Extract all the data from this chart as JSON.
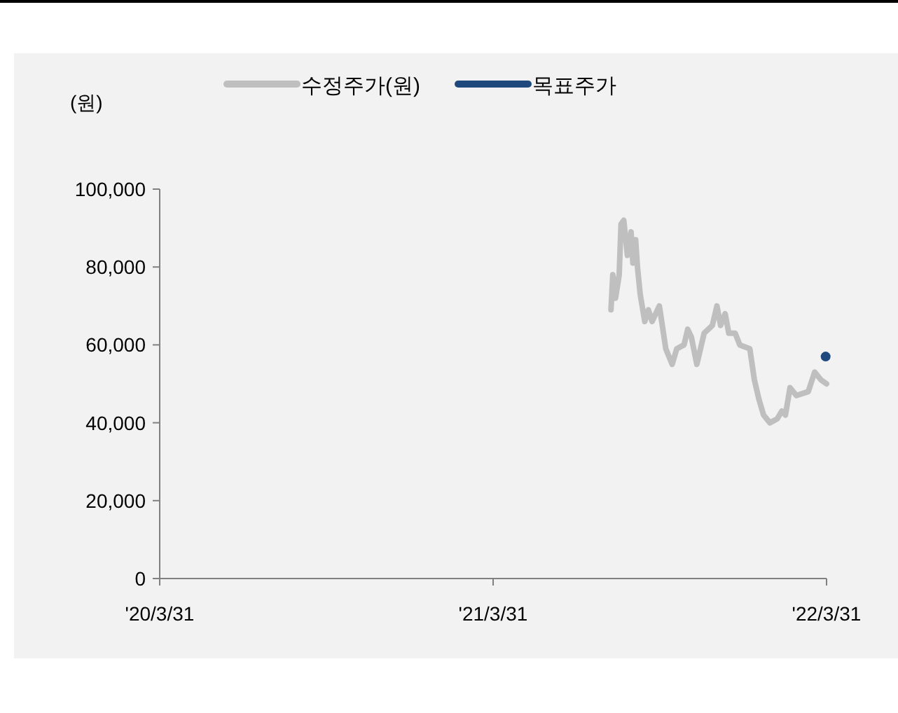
{
  "chart_data": {
    "type": "line",
    "ylabel": "(원)",
    "legend": "top",
    "grid": false,
    "line_style": "solid",
    "xlim": [
      "2020-03-31",
      "2022-03-31"
    ],
    "xticks": [
      {
        "value": "2020-03-31",
        "label": "'20/3/31"
      },
      {
        "value": "2021-03-31",
        "label": "'21/3/31"
      },
      {
        "value": "2022-03-31",
        "label": "'22/3/31"
      }
    ],
    "ylim": [
      0,
      100000
    ],
    "yticks": [
      {
        "value": 0,
        "label": "0"
      },
      {
        "value": 20000,
        "label": "20,000"
      },
      {
        "value": 40000,
        "label": "40,000"
      },
      {
        "value": 60000,
        "label": "60,000"
      },
      {
        "value": 80000,
        "label": "80,000"
      },
      {
        "value": 100000,
        "label": "100,000"
      }
    ],
    "series": [
      {
        "name": "수정주가(원)",
        "color": "#bfbfbf",
        "marker": "none",
        "x": [
          "2021-08-07",
          "2021-08-09",
          "2021-08-12",
          "2021-08-16",
          "2021-08-18",
          "2021-08-21",
          "2021-08-25",
          "2021-08-29",
          "2021-08-31",
          "2021-09-03",
          "2021-09-05",
          "2021-09-08",
          "2021-09-13",
          "2021-09-17",
          "2021-09-21",
          "2021-09-29",
          "2021-10-06",
          "2021-10-13",
          "2021-10-18",
          "2021-10-26",
          "2021-10-30",
          "2021-11-03",
          "2021-11-09",
          "2021-11-17",
          "2021-11-26",
          "2021-12-01",
          "2021-12-05",
          "2021-12-10",
          "2021-12-14",
          "2021-12-21",
          "2021-12-26",
          "2022-01-06",
          "2022-01-11",
          "2022-01-16",
          "2022-01-21",
          "2022-01-28",
          "2022-02-05",
          "2022-02-10",
          "2022-02-14",
          "2022-02-19",
          "2022-02-26",
          "2022-03-11",
          "2022-03-18",
          "2022-03-25",
          "2022-03-31"
        ],
        "values": [
          69000,
          78000,
          72000,
          78000,
          91000,
          92000,
          83000,
          89000,
          81000,
          87000,
          80000,
          73000,
          66000,
          69000,
          66000,
          70000,
          59000,
          55000,
          59000,
          60000,
          64000,
          62000,
          55000,
          63000,
          65000,
          70000,
          65000,
          68000,
          63000,
          63000,
          60000,
          59000,
          51000,
          46000,
          42000,
          40000,
          41000,
          43000,
          42000,
          49000,
          47000,
          48000,
          53000,
          51000,
          50000
        ]
      },
      {
        "name": "목표주가",
        "type": "scatter",
        "color": "#1f497d",
        "marker": "circle",
        "x": [
          "2022-03-30"
        ],
        "values": [
          57000
        ]
      }
    ]
  }
}
